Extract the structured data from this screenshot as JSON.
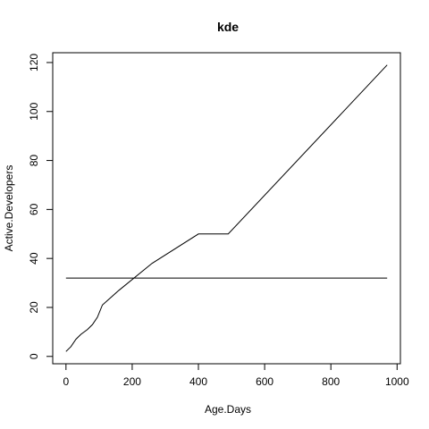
{
  "chart_data": {
    "type": "line",
    "title": "kde",
    "xlabel": "Age.Days",
    "ylabel": "Active.Developers",
    "xlim": [
      -40,
      1010
    ],
    "ylim": [
      -3,
      124
    ],
    "x_ticks": [
      0,
      200,
      400,
      600,
      800,
      1000
    ],
    "x_tick_labels": [
      "0",
      "200",
      "400",
      "600",
      "800",
      "1000"
    ],
    "y_ticks": [
      0,
      20,
      40,
      60,
      80,
      100,
      120
    ],
    "y_tick_labels": [
      "0",
      "20",
      "40",
      "60",
      "80",
      "100",
      "120"
    ],
    "grid": false,
    "legend": "none",
    "colors": {
      "line": "#000000",
      "axis": "#000000",
      "background": "#ffffff"
    },
    "series": [
      {
        "values_x": [
          0,
          15,
          30,
          45,
          65,
          80,
          95,
          110,
          160,
          260,
          400,
          490,
          970
        ],
        "values_y": [
          2,
          4,
          7,
          9,
          11,
          13,
          16,
          21,
          27,
          38,
          50,
          50,
          119
        ]
      },
      {
        "values_x": [
          0,
          970
        ],
        "values_y": [
          32,
          32
        ]
      }
    ]
  }
}
